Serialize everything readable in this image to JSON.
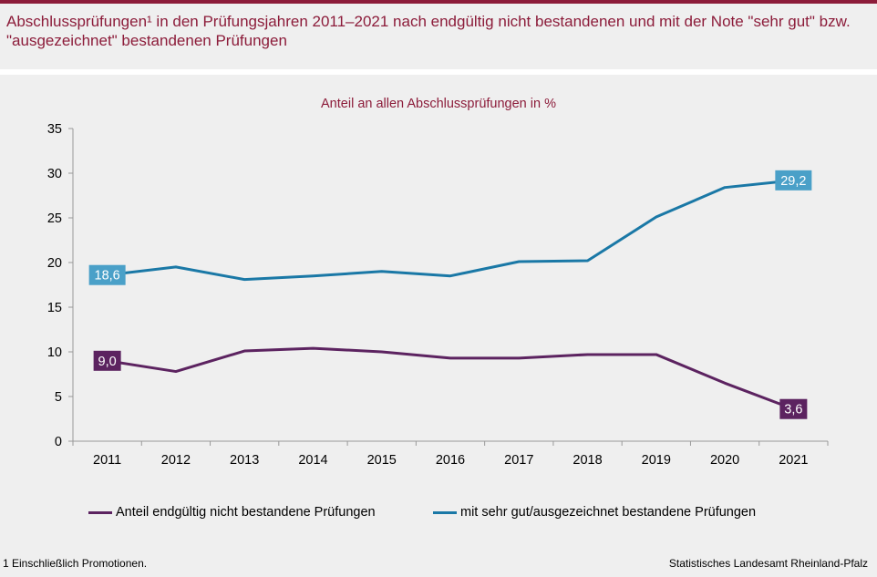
{
  "header": {
    "title": "Abschlussprüfungen¹ in den Prüfungsjahren 2011–2021 nach endgültig nicht bestandenen und mit der Note \"sehr gut\" bzw. \"ausgezeichnet\" bestandenen Prüfungen"
  },
  "footer": {
    "footnote": "1 Einschließlich Promotionen.",
    "source": "Statistisches Landesamt Rheinland-Pfalz"
  },
  "chart_data": {
    "type": "line",
    "title": "Anteil an allen Abschlussprüfungen  in %",
    "xlabel": "",
    "ylabel": "",
    "categories": [
      "2011",
      "2012",
      "2013",
      "2014",
      "2015",
      "2016",
      "2017",
      "2018",
      "2019",
      "2020",
      "2021"
    ],
    "ylim": [
      0,
      35
    ],
    "yticks": [
      0,
      5,
      10,
      15,
      20,
      25,
      30,
      35
    ],
    "grid": false,
    "legend_position": "bottom",
    "series": [
      {
        "name": "Anteil endgültig nicht bestandene Prüfungen",
        "color": "#5c2360",
        "values": [
          9.0,
          7.8,
          10.1,
          10.4,
          10.0,
          9.3,
          9.3,
          9.7,
          9.7,
          6.5,
          3.6
        ],
        "labels": {
          "first": "9,0",
          "last": "3,6"
        }
      },
      {
        "name": "mit sehr gut/ausgezeichnet bestandene Prüfungen",
        "color": "#1a78a6",
        "label_color": "#4aa0c8",
        "values": [
          18.6,
          19.5,
          18.1,
          18.5,
          19.0,
          18.5,
          20.1,
          20.2,
          25.1,
          28.4,
          29.2
        ],
        "labels": {
          "first": "18,6",
          "last": "29,2"
        }
      }
    ]
  }
}
